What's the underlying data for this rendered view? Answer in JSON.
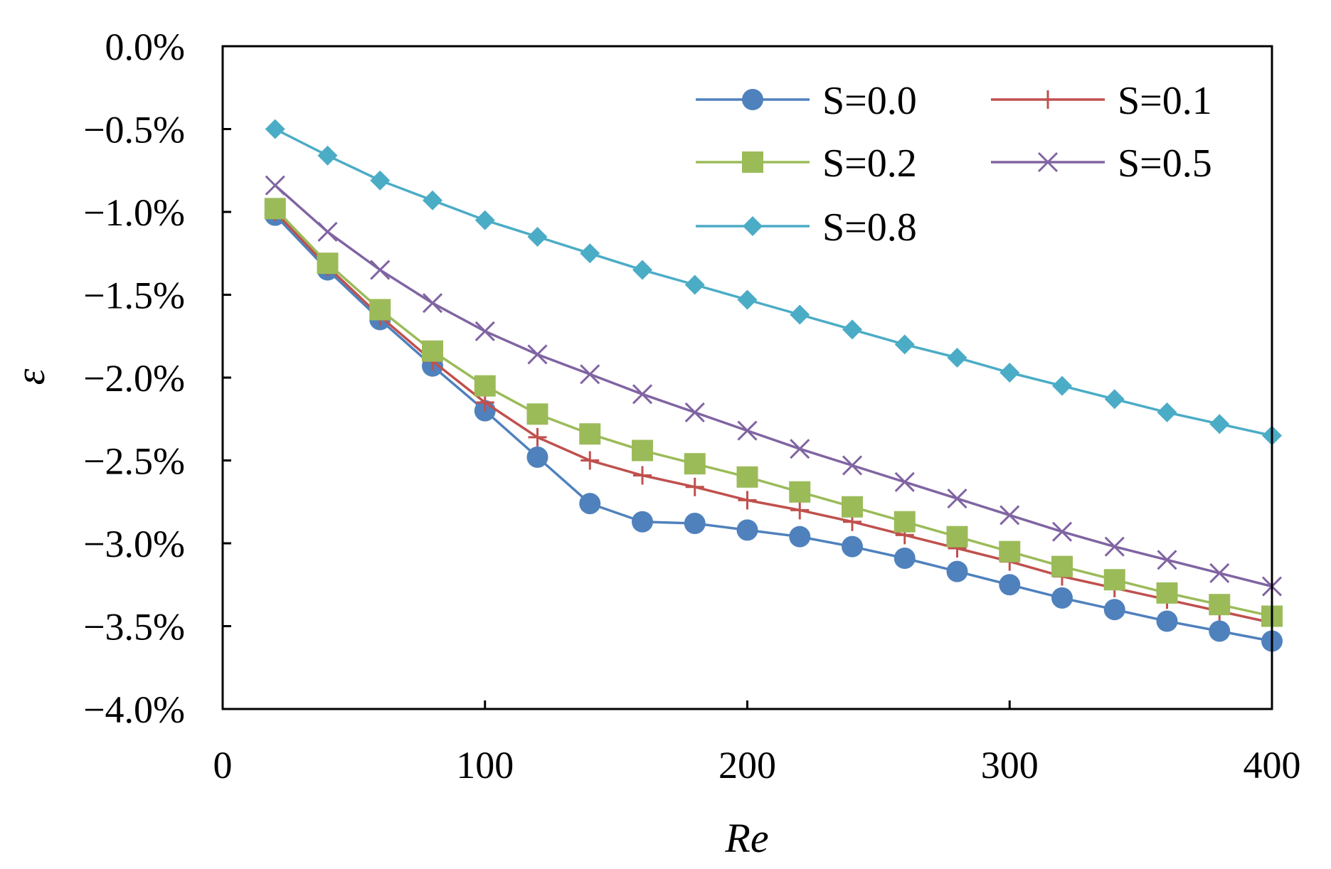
{
  "chart_data": {
    "type": "line",
    "title": "",
    "xlabel": "Re",
    "ylabel": "ε",
    "xlim": [
      0,
      400
    ],
    "ylim": [
      -4.0,
      0.0
    ],
    "x_ticks": [
      0,
      100,
      200,
      300,
      400
    ],
    "x_tick_labels": [
      "0",
      "100",
      "200",
      "300",
      "400"
    ],
    "y_ticks": [
      0.0,
      -0.5,
      -1.0,
      -1.5,
      -2.0,
      -2.5,
      -3.0,
      -3.5,
      -4.0
    ],
    "y_tick_labels": [
      "0.0%",
      "−0.5%",
      "−1.0%",
      "−1.5%",
      "−2.0%",
      "−2.5%",
      "−3.0%",
      "−3.5%",
      "−4.0%"
    ],
    "grid": false,
    "legend_position": "top-right",
    "x": [
      20,
      40,
      60,
      80,
      100,
      120,
      140,
      160,
      180,
      200,
      220,
      240,
      260,
      280,
      300,
      320,
      340,
      360,
      380,
      400
    ],
    "series": [
      {
        "name": "S=0.0",
        "color": "#4F81BD",
        "marker": "circle",
        "values": [
          -1.02,
          -1.35,
          -1.65,
          -1.93,
          -2.2,
          -2.48,
          -2.76,
          -2.87,
          -2.88,
          -2.92,
          -2.96,
          -3.02,
          -3.09,
          -3.17,
          -3.25,
          -3.33,
          -3.4,
          -3.47,
          -3.53,
          -3.59
        ]
      },
      {
        "name": "S=0.1",
        "color": "#C0504D",
        "marker": "plus",
        "values": [
          -1.0,
          -1.33,
          -1.63,
          -1.9,
          -2.15,
          -2.36,
          -2.5,
          -2.59,
          -2.66,
          -2.74,
          -2.8,
          -2.87,
          -2.95,
          -3.03,
          -3.11,
          -3.2,
          -3.27,
          -3.34,
          -3.41,
          -3.48
        ]
      },
      {
        "name": "S=0.2",
        "color": "#9BBB59",
        "marker": "square",
        "values": [
          -0.98,
          -1.31,
          -1.59,
          -1.84,
          -2.05,
          -2.22,
          -2.34,
          -2.44,
          -2.52,
          -2.6,
          -2.69,
          -2.78,
          -2.87,
          -2.96,
          -3.05,
          -3.14,
          -3.22,
          -3.3,
          -3.37,
          -3.44
        ]
      },
      {
        "name": "S=0.5",
        "color": "#8064A2",
        "marker": "x",
        "values": [
          -0.84,
          -1.12,
          -1.35,
          -1.55,
          -1.72,
          -1.86,
          -1.98,
          -2.1,
          -2.21,
          -2.32,
          -2.43,
          -2.53,
          -2.63,
          -2.73,
          -2.83,
          -2.93,
          -3.02,
          -3.1,
          -3.18,
          -3.26
        ]
      },
      {
        "name": "S=0.8",
        "color": "#4BACC6",
        "marker": "diamond",
        "values": [
          -0.5,
          -0.66,
          -0.81,
          -0.93,
          -1.05,
          -1.15,
          -1.25,
          -1.35,
          -1.44,
          -1.53,
          -1.62,
          -1.71,
          -1.8,
          -1.88,
          -1.97,
          -2.05,
          -2.13,
          -2.21,
          -2.28,
          -2.35
        ]
      }
    ]
  }
}
